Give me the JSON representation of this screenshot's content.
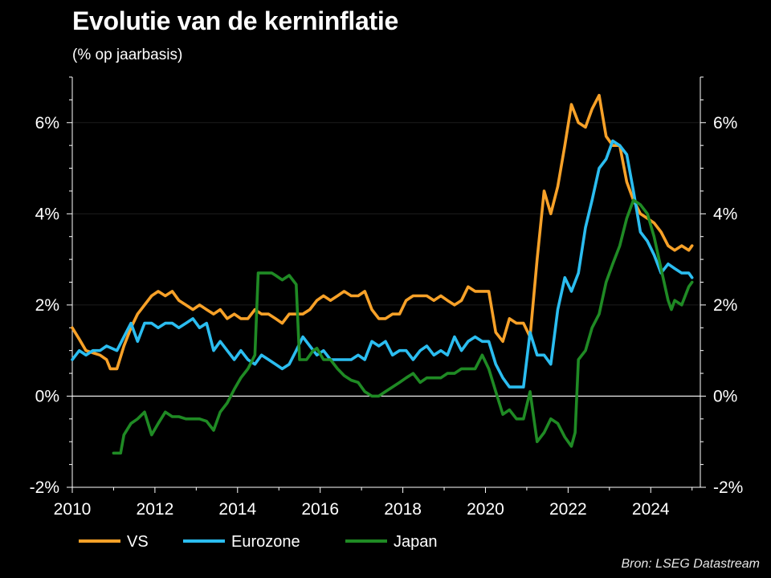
{
  "title": "Evolutie van de kerninflatie",
  "subtitle": "(% op jaarbasis)",
  "source": "Bron: LSEG Datastream",
  "chart_data": {
    "type": "line",
    "title": "Evolutie van de kerninflatie",
    "subtitle": "(% op jaarbasis)",
    "xlim": [
      2010,
      2025.2
    ],
    "ylim": [
      -2,
      7
    ],
    "x_ticks": [
      2010,
      2012,
      2014,
      2016,
      2018,
      2020,
      2022,
      2024
    ],
    "x_tick_labels": [
      "2010",
      "2012",
      "2014",
      "2016",
      "2018",
      "2020",
      "2022",
      "2024"
    ],
    "y_ticks": [
      -2,
      0,
      2,
      4,
      6
    ],
    "y_tick_labels": [
      "-2%",
      "0%",
      "2%",
      "4%",
      "6%"
    ],
    "zero_line": true,
    "grid": true,
    "legend_position": "bottom-left",
    "series": [
      {
        "name": "VS",
        "color": "#f7a128",
        "points": [
          [
            2010.0,
            1.5
          ],
          [
            2010.17,
            1.25
          ],
          [
            2010.33,
            1.0
          ],
          [
            2010.5,
            0.95
          ],
          [
            2010.67,
            0.9
          ],
          [
            2010.83,
            0.8
          ],
          [
            2010.92,
            0.6
          ],
          [
            2011.08,
            0.6
          ],
          [
            2011.25,
            1.1
          ],
          [
            2011.42,
            1.5
          ],
          [
            2011.58,
            1.8
          ],
          [
            2011.75,
            2.0
          ],
          [
            2011.92,
            2.2
          ],
          [
            2012.08,
            2.3
          ],
          [
            2012.25,
            2.2
          ],
          [
            2012.42,
            2.3
          ],
          [
            2012.58,
            2.1
          ],
          [
            2012.75,
            2.0
          ],
          [
            2012.92,
            1.9
          ],
          [
            2013.08,
            2.0
          ],
          [
            2013.25,
            1.9
          ],
          [
            2013.42,
            1.8
          ],
          [
            2013.58,
            1.9
          ],
          [
            2013.75,
            1.7
          ],
          [
            2013.92,
            1.8
          ],
          [
            2014.08,
            1.7
          ],
          [
            2014.25,
            1.7
          ],
          [
            2014.42,
            1.9
          ],
          [
            2014.58,
            1.8
          ],
          [
            2014.75,
            1.8
          ],
          [
            2014.92,
            1.7
          ],
          [
            2015.08,
            1.6
          ],
          [
            2015.25,
            1.8
          ],
          [
            2015.42,
            1.8
          ],
          [
            2015.58,
            1.8
          ],
          [
            2015.75,
            1.9
          ],
          [
            2015.92,
            2.1
          ],
          [
            2016.08,
            2.2
          ],
          [
            2016.25,
            2.1
          ],
          [
            2016.42,
            2.2
          ],
          [
            2016.58,
            2.3
          ],
          [
            2016.75,
            2.2
          ],
          [
            2016.92,
            2.2
          ],
          [
            2017.08,
            2.3
          ],
          [
            2017.25,
            1.9
          ],
          [
            2017.42,
            1.7
          ],
          [
            2017.58,
            1.7
          ],
          [
            2017.75,
            1.8
          ],
          [
            2017.92,
            1.8
          ],
          [
            2018.08,
            2.1
          ],
          [
            2018.25,
            2.2
          ],
          [
            2018.42,
            2.2
          ],
          [
            2018.58,
            2.2
          ],
          [
            2018.75,
            2.1
          ],
          [
            2018.92,
            2.2
          ],
          [
            2019.08,
            2.1
          ],
          [
            2019.25,
            2.0
          ],
          [
            2019.42,
            2.1
          ],
          [
            2019.58,
            2.4
          ],
          [
            2019.75,
            2.3
          ],
          [
            2019.92,
            2.3
          ],
          [
            2020.08,
            2.3
          ],
          [
            2020.25,
            1.4
          ],
          [
            2020.42,
            1.2
          ],
          [
            2020.58,
            1.7
          ],
          [
            2020.75,
            1.6
          ],
          [
            2020.92,
            1.6
          ],
          [
            2021.08,
            1.3
          ],
          [
            2021.25,
            3.0
          ],
          [
            2021.42,
            4.5
          ],
          [
            2021.58,
            4.0
          ],
          [
            2021.75,
            4.6
          ],
          [
            2021.92,
            5.5
          ],
          [
            2022.08,
            6.4
          ],
          [
            2022.25,
            6.0
          ],
          [
            2022.42,
            5.9
          ],
          [
            2022.58,
            6.3
          ],
          [
            2022.75,
            6.6
          ],
          [
            2022.92,
            5.7
          ],
          [
            2023.08,
            5.5
          ],
          [
            2023.25,
            5.5
          ],
          [
            2023.42,
            4.7
          ],
          [
            2023.58,
            4.3
          ],
          [
            2023.75,
            4.0
          ],
          [
            2023.92,
            3.9
          ],
          [
            2024.08,
            3.8
          ],
          [
            2024.25,
            3.6
          ],
          [
            2024.42,
            3.3
          ],
          [
            2024.58,
            3.2
          ],
          [
            2024.75,
            3.3
          ],
          [
            2024.92,
            3.2
          ],
          [
            2025.0,
            3.3
          ]
        ]
      },
      {
        "name": "Eurozone",
        "color": "#2bbdf0",
        "points": [
          [
            2010.0,
            0.8
          ],
          [
            2010.17,
            1.0
          ],
          [
            2010.33,
            0.9
          ],
          [
            2010.5,
            1.0
          ],
          [
            2010.67,
            1.0
          ],
          [
            2010.83,
            1.1
          ],
          [
            2011.08,
            1.0
          ],
          [
            2011.25,
            1.3
          ],
          [
            2011.42,
            1.6
          ],
          [
            2011.58,
            1.2
          ],
          [
            2011.75,
            1.6
          ],
          [
            2011.92,
            1.6
          ],
          [
            2012.08,
            1.5
          ],
          [
            2012.25,
            1.6
          ],
          [
            2012.42,
            1.6
          ],
          [
            2012.58,
            1.5
          ],
          [
            2012.75,
            1.6
          ],
          [
            2012.92,
            1.7
          ],
          [
            2013.08,
            1.5
          ],
          [
            2013.25,
            1.6
          ],
          [
            2013.42,
            1.0
          ],
          [
            2013.58,
            1.2
          ],
          [
            2013.75,
            1.0
          ],
          [
            2013.92,
            0.8
          ],
          [
            2014.08,
            1.0
          ],
          [
            2014.25,
            0.8
          ],
          [
            2014.42,
            0.7
          ],
          [
            2014.58,
            0.9
          ],
          [
            2014.75,
            0.8
          ],
          [
            2014.92,
            0.7
          ],
          [
            2015.08,
            0.6
          ],
          [
            2015.25,
            0.7
          ],
          [
            2015.42,
            1.0
          ],
          [
            2015.58,
            1.3
          ],
          [
            2015.75,
            1.1
          ],
          [
            2015.92,
            0.9
          ],
          [
            2016.08,
            1.0
          ],
          [
            2016.25,
            0.8
          ],
          [
            2016.42,
            0.8
          ],
          [
            2016.58,
            0.8
          ],
          [
            2016.75,
            0.8
          ],
          [
            2016.92,
            0.9
          ],
          [
            2017.08,
            0.8
          ],
          [
            2017.25,
            1.2
          ],
          [
            2017.42,
            1.1
          ],
          [
            2017.58,
            1.2
          ],
          [
            2017.75,
            0.9
          ],
          [
            2017.92,
            1.0
          ],
          [
            2018.08,
            1.0
          ],
          [
            2018.25,
            0.8
          ],
          [
            2018.42,
            1.0
          ],
          [
            2018.58,
            1.1
          ],
          [
            2018.75,
            0.9
          ],
          [
            2018.92,
            1.0
          ],
          [
            2019.08,
            0.9
          ],
          [
            2019.25,
            1.3
          ],
          [
            2019.42,
            1.0
          ],
          [
            2019.58,
            1.2
          ],
          [
            2019.75,
            1.3
          ],
          [
            2019.92,
            1.2
          ],
          [
            2020.08,
            1.2
          ],
          [
            2020.25,
            0.7
          ],
          [
            2020.42,
            0.4
          ],
          [
            2020.58,
            0.2
          ],
          [
            2020.75,
            0.2
          ],
          [
            2020.92,
            0.2
          ],
          [
            2021.08,
            1.4
          ],
          [
            2021.25,
            0.9
          ],
          [
            2021.42,
            0.9
          ],
          [
            2021.58,
            0.7
          ],
          [
            2021.75,
            1.9
          ],
          [
            2021.92,
            2.6
          ],
          [
            2022.08,
            2.3
          ],
          [
            2022.25,
            2.7
          ],
          [
            2022.42,
            3.7
          ],
          [
            2022.58,
            4.3
          ],
          [
            2022.75,
            5.0
          ],
          [
            2022.92,
            5.2
          ],
          [
            2023.08,
            5.6
          ],
          [
            2023.25,
            5.5
          ],
          [
            2023.42,
            5.3
          ],
          [
            2023.58,
            4.5
          ],
          [
            2023.75,
            3.6
          ],
          [
            2023.92,
            3.4
          ],
          [
            2024.08,
            3.1
          ],
          [
            2024.25,
            2.7
          ],
          [
            2024.42,
            2.9
          ],
          [
            2024.58,
            2.8
          ],
          [
            2024.75,
            2.7
          ],
          [
            2024.92,
            2.7
          ],
          [
            2025.0,
            2.6
          ]
        ]
      },
      {
        "name": "Japan",
        "color": "#1f8a24",
        "points": [
          [
            2011.0,
            -1.25
          ],
          [
            2011.17,
            -1.25
          ],
          [
            2011.25,
            -0.85
          ],
          [
            2011.42,
            -0.6
          ],
          [
            2011.58,
            -0.5
          ],
          [
            2011.75,
            -0.35
          ],
          [
            2011.92,
            -0.85
          ],
          [
            2012.08,
            -0.6
          ],
          [
            2012.25,
            -0.35
          ],
          [
            2012.42,
            -0.45
          ],
          [
            2012.58,
            -0.45
          ],
          [
            2012.75,
            -0.5
          ],
          [
            2012.92,
            -0.5
          ],
          [
            2013.08,
            -0.5
          ],
          [
            2013.25,
            -0.55
          ],
          [
            2013.42,
            -0.75
          ],
          [
            2013.58,
            -0.35
          ],
          [
            2013.75,
            -0.15
          ],
          [
            2013.92,
            0.15
          ],
          [
            2014.08,
            0.4
          ],
          [
            2014.25,
            0.6
          ],
          [
            2014.42,
            0.9
          ],
          [
            2014.5,
            2.7
          ],
          [
            2014.67,
            2.7
          ],
          [
            2014.83,
            2.7
          ],
          [
            2014.92,
            2.65
          ],
          [
            2015.08,
            2.55
          ],
          [
            2015.25,
            2.65
          ],
          [
            2015.42,
            2.45
          ],
          [
            2015.5,
            0.8
          ],
          [
            2015.67,
            0.8
          ],
          [
            2015.83,
            1.0
          ],
          [
            2015.92,
            1.05
          ],
          [
            2016.08,
            0.8
          ],
          [
            2016.25,
            0.8
          ],
          [
            2016.42,
            0.6
          ],
          [
            2016.58,
            0.45
          ],
          [
            2016.75,
            0.35
          ],
          [
            2016.92,
            0.3
          ],
          [
            2017.08,
            0.1
          ],
          [
            2017.25,
            0.0
          ],
          [
            2017.42,
            0.0
          ],
          [
            2017.58,
            0.1
          ],
          [
            2017.75,
            0.2
          ],
          [
            2017.92,
            0.3
          ],
          [
            2018.08,
            0.4
          ],
          [
            2018.25,
            0.5
          ],
          [
            2018.42,
            0.3
          ],
          [
            2018.58,
            0.4
          ],
          [
            2018.75,
            0.4
          ],
          [
            2018.92,
            0.4
          ],
          [
            2019.08,
            0.5
          ],
          [
            2019.25,
            0.5
          ],
          [
            2019.42,
            0.6
          ],
          [
            2019.58,
            0.6
          ],
          [
            2019.75,
            0.6
          ],
          [
            2019.92,
            0.9
          ],
          [
            2020.08,
            0.6
          ],
          [
            2020.25,
            0.1
          ],
          [
            2020.42,
            -0.4
          ],
          [
            2020.58,
            -0.3
          ],
          [
            2020.75,
            -0.5
          ],
          [
            2020.92,
            -0.5
          ],
          [
            2021.08,
            0.1
          ],
          [
            2021.25,
            -1.0
          ],
          [
            2021.42,
            -0.8
          ],
          [
            2021.58,
            -0.5
          ],
          [
            2021.75,
            -0.6
          ],
          [
            2021.92,
            -0.9
          ],
          [
            2022.08,
            -1.1
          ],
          [
            2022.17,
            -0.8
          ],
          [
            2022.25,
            0.8
          ],
          [
            2022.42,
            1.0
          ],
          [
            2022.58,
            1.5
          ],
          [
            2022.75,
            1.8
          ],
          [
            2022.92,
            2.5
          ],
          [
            2023.08,
            2.9
          ],
          [
            2023.25,
            3.3
          ],
          [
            2023.42,
            3.9
          ],
          [
            2023.58,
            4.3
          ],
          [
            2023.75,
            4.2
          ],
          [
            2023.92,
            4.0
          ],
          [
            2024.08,
            3.5
          ],
          [
            2024.25,
            2.8
          ],
          [
            2024.42,
            2.1
          ],
          [
            2024.5,
            1.9
          ],
          [
            2024.58,
            2.1
          ],
          [
            2024.75,
            2.0
          ],
          [
            2024.92,
            2.4
          ],
          [
            2025.0,
            2.5
          ]
        ]
      }
    ]
  }
}
